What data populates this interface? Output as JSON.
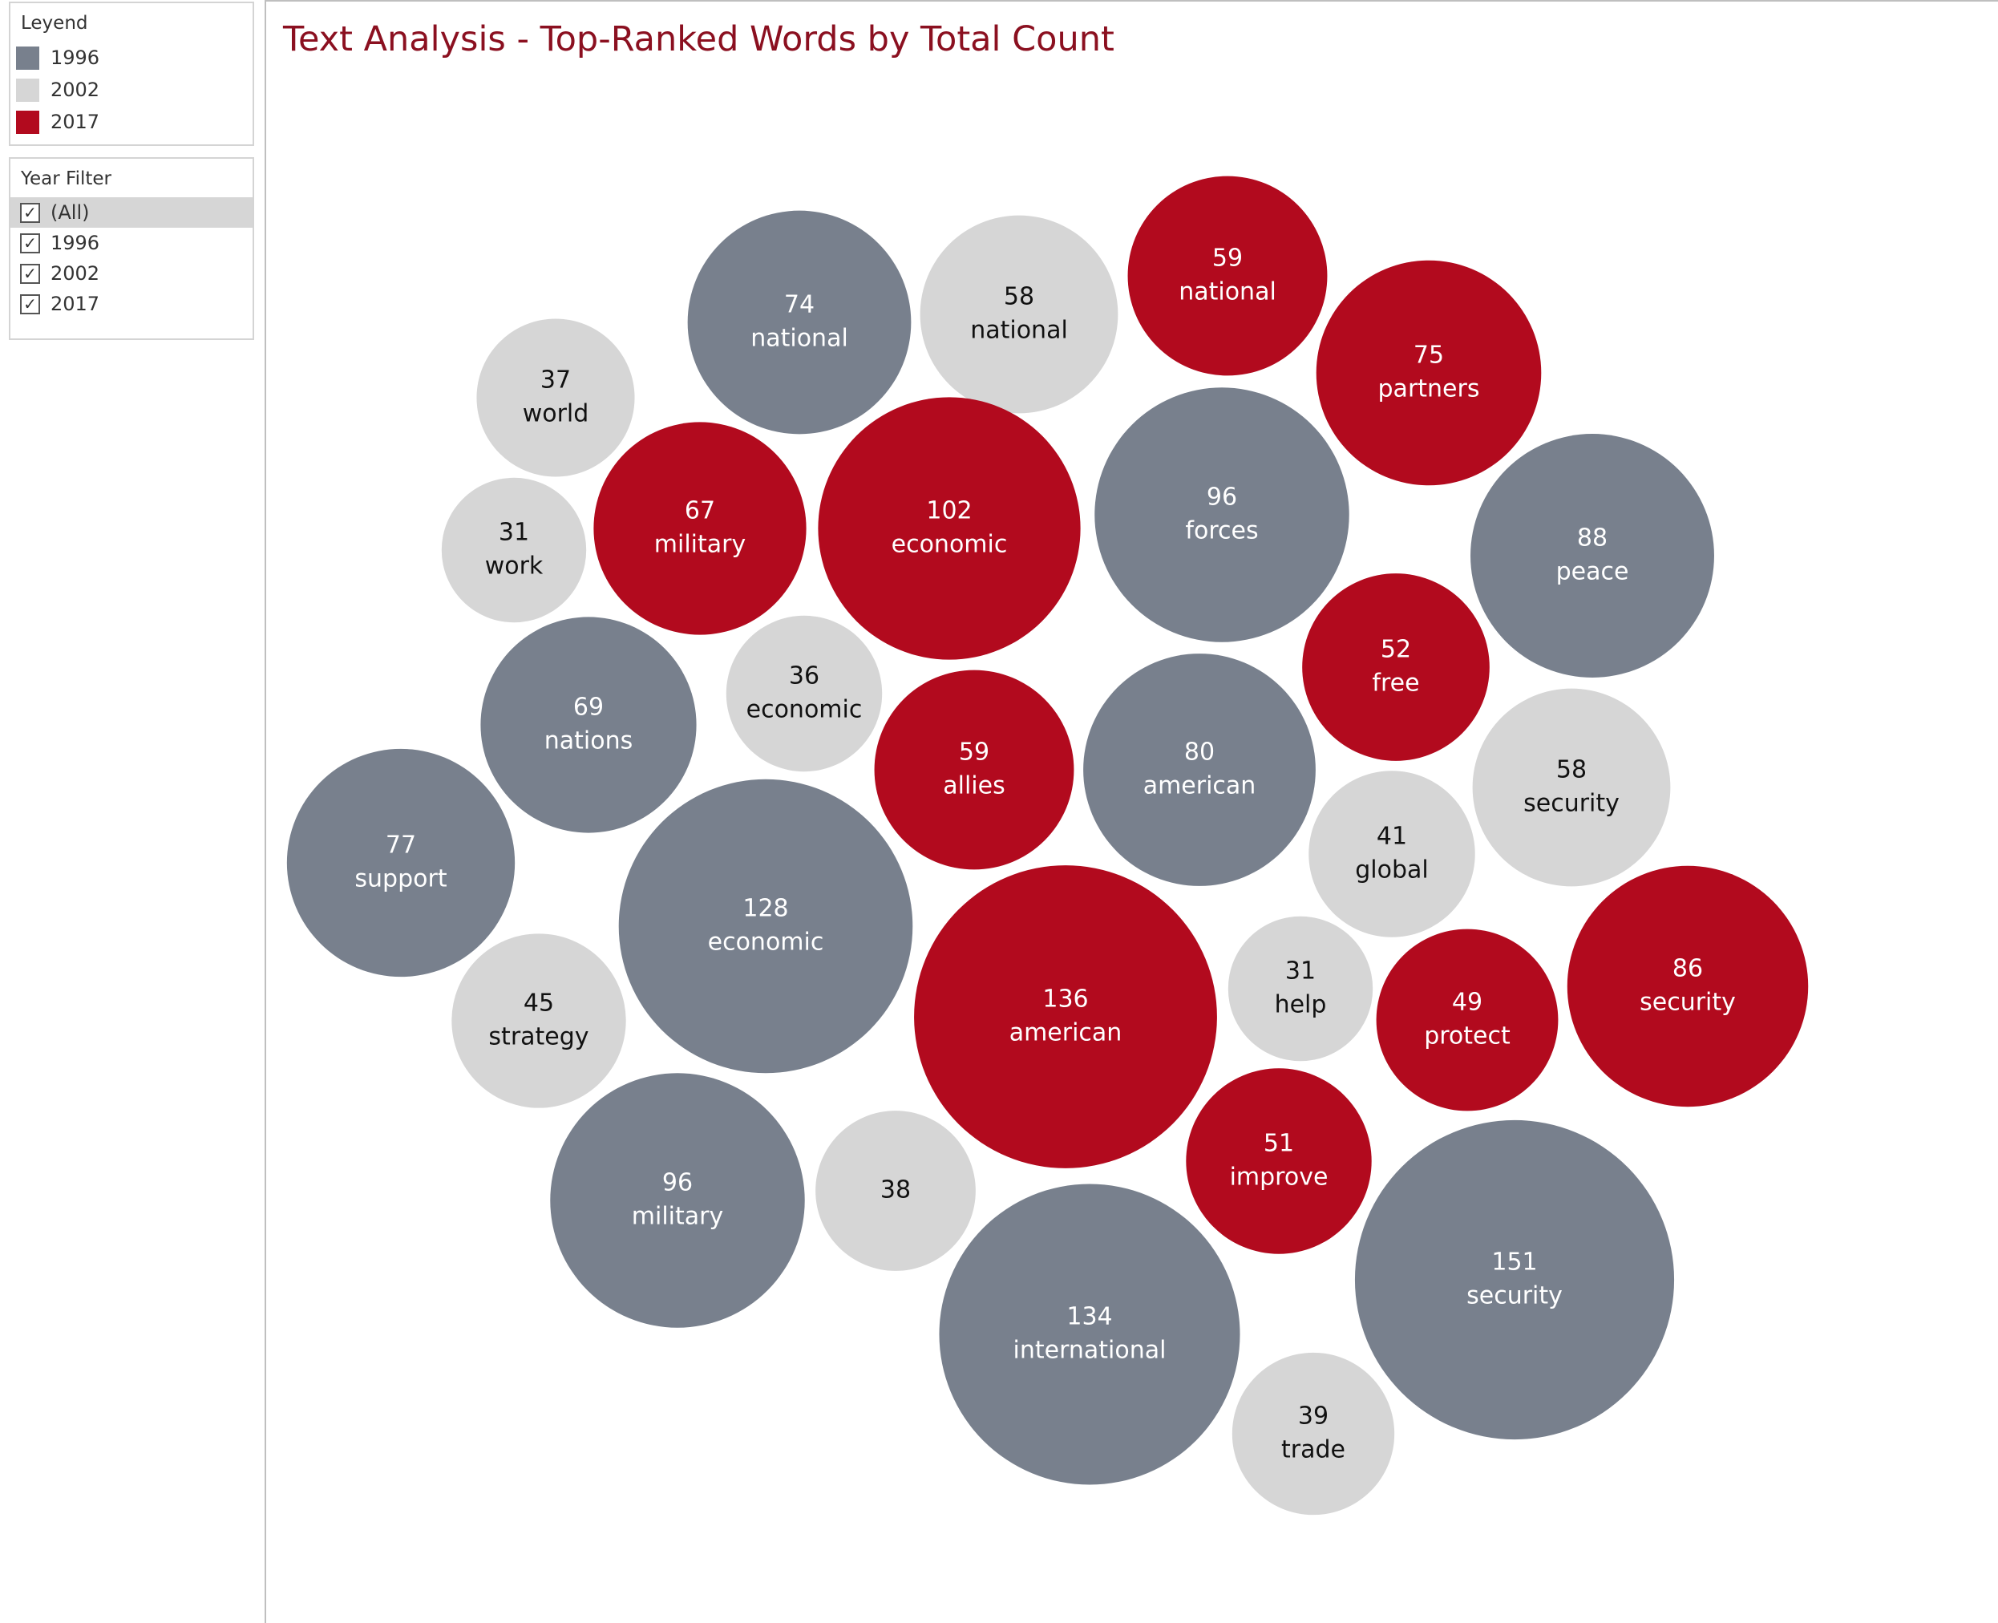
{
  "legend": {
    "title": "Leyend",
    "items": [
      {
        "label": "1996",
        "color": "#78808d"
      },
      {
        "label": "2002",
        "color": "#d6d6d6"
      },
      {
        "label": "2017",
        "color": "#b20a1e"
      }
    ]
  },
  "year_filter": {
    "title": "Year Filter",
    "items": [
      {
        "label": "(All)",
        "checked": true,
        "selected": true,
        "check_glyph": "✓"
      },
      {
        "label": "1996",
        "checked": true,
        "check_glyph": "✓"
      },
      {
        "label": "2002",
        "checked": true,
        "check_glyph": "✓"
      },
      {
        "label": "2017",
        "checked": true,
        "check_glyph": "✓"
      }
    ]
  },
  "chart_data": {
    "type": "packed-bubble",
    "title": "Text Analysis - Top-Ranked Words by Total Count",
    "colors": {
      "1996": "#78808d",
      "2002": "#d6d6d6",
      "2017": "#b20a1e"
    },
    "bubbles": [
      {
        "word": "national",
        "count": 74,
        "year": "1996"
      },
      {
        "word": "national",
        "count": 58,
        "year": "2002"
      },
      {
        "word": "national",
        "count": 59,
        "year": "2017"
      },
      {
        "word": "partners",
        "count": 75,
        "year": "2017"
      },
      {
        "word": "world",
        "count": 37,
        "year": "2002"
      },
      {
        "word": "work",
        "count": 31,
        "year": "2002"
      },
      {
        "word": "military",
        "count": 67,
        "year": "2017"
      },
      {
        "word": "economic",
        "count": 102,
        "year": "2017"
      },
      {
        "word": "forces",
        "count": 96,
        "year": "1996"
      },
      {
        "word": "peace",
        "count": 88,
        "year": "1996"
      },
      {
        "word": "free",
        "count": 52,
        "year": "2017"
      },
      {
        "word": "nations",
        "count": 69,
        "year": "1996"
      },
      {
        "word": "economic",
        "count": 36,
        "year": "2002"
      },
      {
        "word": "allies",
        "count": 59,
        "year": "2017"
      },
      {
        "word": "american",
        "count": 80,
        "year": "1996"
      },
      {
        "word": "security",
        "count": 58,
        "year": "2002"
      },
      {
        "word": "global",
        "count": 41,
        "year": "2002"
      },
      {
        "word": "support",
        "count": 77,
        "year": "1996"
      },
      {
        "word": "economic",
        "count": 128,
        "year": "1996"
      },
      {
        "word": "strategy",
        "count": 45,
        "year": "2002"
      },
      {
        "word": "american",
        "count": 136,
        "year": "2017"
      },
      {
        "word": "help",
        "count": 31,
        "year": "2002"
      },
      {
        "word": "protect",
        "count": 49,
        "year": "2017"
      },
      {
        "word": "security",
        "count": 86,
        "year": "2017"
      },
      {
        "word": "military",
        "count": 96,
        "year": "1996"
      },
      {
        "word": "",
        "count": 38,
        "year": "2002"
      },
      {
        "word": "improve",
        "count": 51,
        "year": "2017"
      },
      {
        "word": "international",
        "count": 134,
        "year": "1996"
      },
      {
        "word": "security",
        "count": 151,
        "year": "1996"
      },
      {
        "word": "trade",
        "count": 39,
        "year": "2002"
      }
    ]
  }
}
